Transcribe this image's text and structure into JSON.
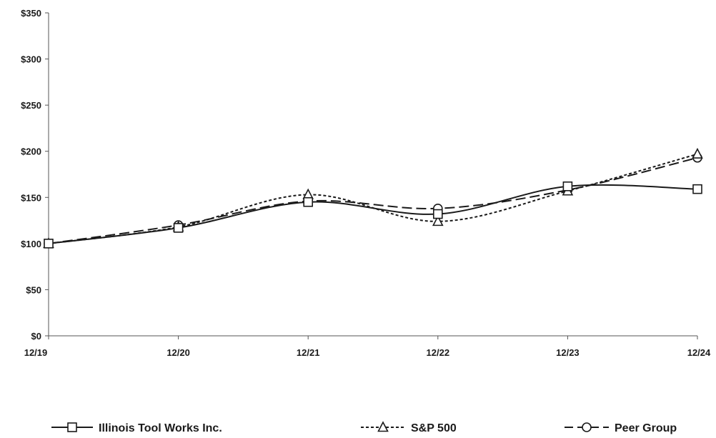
{
  "chart_data": {
    "type": "line",
    "title": "",
    "xlabel": "",
    "ylabel": "",
    "categories": [
      "12/19",
      "12/20",
      "12/21",
      "12/22",
      "12/23",
      "12/24"
    ],
    "y_ticks": [
      "$0",
      "$50",
      "$100",
      "$150",
      "$200",
      "$250",
      "$300",
      "$350"
    ],
    "ylim": [
      0,
      350
    ],
    "grid": false,
    "legend_position": "bottom",
    "series": [
      {
        "name": "Illinois Tool Works Inc.",
        "values": [
          100,
          117,
          145,
          132,
          162,
          159
        ],
        "marker": "square",
        "line_style": "solid",
        "color": "#1a1a1a"
      },
      {
        "name": "S&P 500",
        "values": [
          100,
          118,
          153,
          124,
          157,
          197
        ],
        "marker": "triangle",
        "line_style": "dotted",
        "color": "#1a1a1a"
      },
      {
        "name": "Peer Group",
        "values": [
          100,
          120,
          146,
          138,
          158,
          193
        ],
        "marker": "circle",
        "line_style": "dashed",
        "color": "#1a1a1a"
      }
    ]
  }
}
